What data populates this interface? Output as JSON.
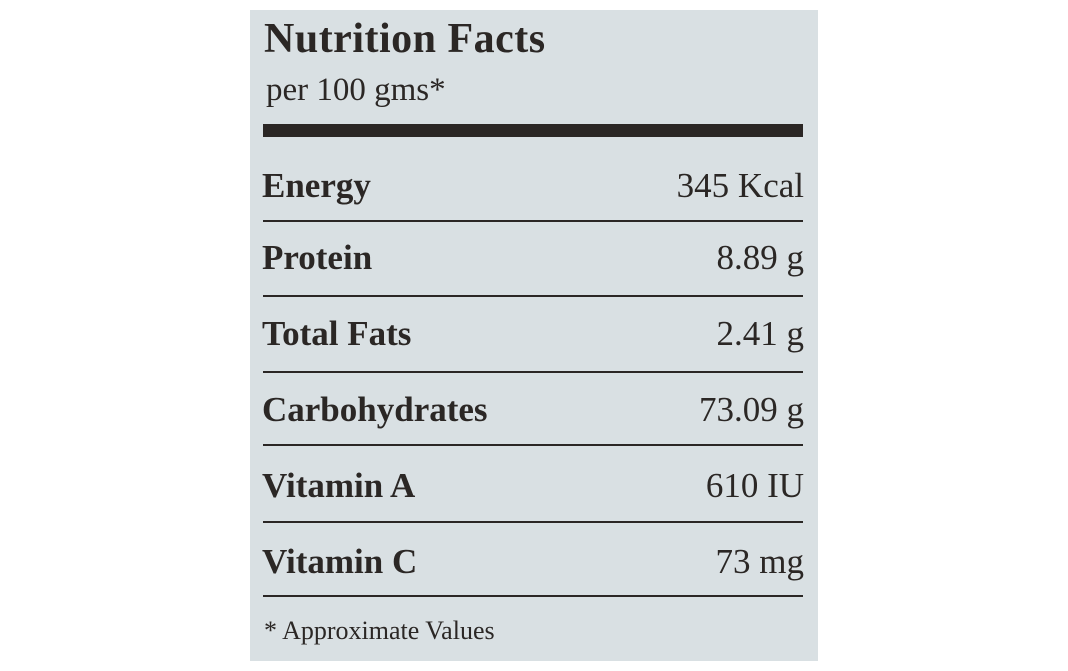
{
  "label": {
    "title": "Nutrition Facts",
    "subtitle": "per 100 gms*",
    "rows": [
      {
        "nutrient": "Energy",
        "amount": "345 Kcal"
      },
      {
        "nutrient": "Protein",
        "amount": "8.89 g"
      },
      {
        "nutrient": "Total Fats",
        "amount": "2.41 g"
      },
      {
        "nutrient": "Carbohydrates",
        "amount": "73.09 g"
      },
      {
        "nutrient": "Vitamin A",
        "amount": "610 IU"
      },
      {
        "nutrient": "Vitamin C",
        "amount": "73 mg"
      }
    ],
    "footnote": "* Approximate Values"
  }
}
